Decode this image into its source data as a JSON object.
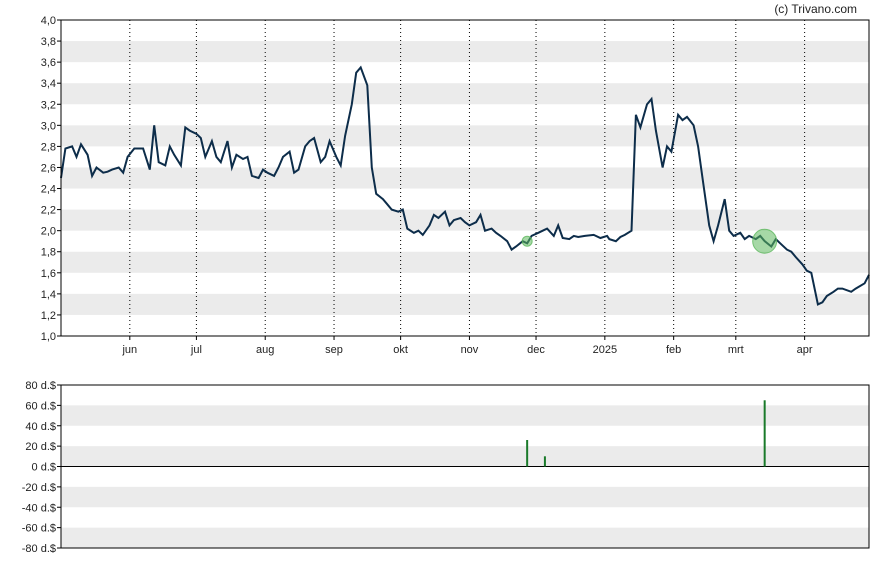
{
  "credit": "(c) Trivano.com",
  "colors": {
    "price_line": "#0d2d4a",
    "band": "#ebebeb",
    "volume_bar": "#1a7a2a",
    "marker_fill": "#5cb85c",
    "axis": "#000000"
  },
  "chart_data": [
    {
      "type": "line",
      "x": [
        "2024-05-01",
        "2024-05-03",
        "2024-05-06",
        "2024-05-08",
        "2024-05-10",
        "2024-05-13",
        "2024-05-15",
        "2024-05-17",
        "2024-05-20",
        "2024-05-22",
        "2024-05-24",
        "2024-05-27",
        "2024-05-29",
        "2024-05-31",
        "2024-06-03",
        "2024-06-05",
        "2024-06-07",
        "2024-06-10",
        "2024-06-12",
        "2024-06-14",
        "2024-06-17",
        "2024-06-19",
        "2024-06-21",
        "2024-06-24",
        "2024-06-26",
        "2024-06-28",
        "2024-07-01",
        "2024-07-03",
        "2024-07-05",
        "2024-07-08",
        "2024-07-10",
        "2024-07-12",
        "2024-07-15",
        "2024-07-17",
        "2024-07-19",
        "2024-07-22",
        "2024-07-24",
        "2024-07-26",
        "2024-07-29",
        "2024-07-31",
        "2024-08-02",
        "2024-08-05",
        "2024-08-07",
        "2024-08-09",
        "2024-08-12",
        "2024-08-14",
        "2024-08-16",
        "2024-08-19",
        "2024-08-21",
        "2024-08-23",
        "2024-08-26",
        "2024-08-28",
        "2024-08-30",
        "2024-09-02",
        "2024-09-04",
        "2024-09-06",
        "2024-09-09",
        "2024-09-11",
        "2024-09-13",
        "2024-09-16",
        "2024-09-18",
        "2024-09-20",
        "2024-09-23",
        "2024-09-25",
        "2024-09-27",
        "2024-09-30",
        "2024-10-02",
        "2024-10-04",
        "2024-10-07",
        "2024-10-09",
        "2024-10-11",
        "2024-10-14",
        "2024-10-16",
        "2024-10-18",
        "2024-10-21",
        "2024-10-23",
        "2024-10-25",
        "2024-10-28",
        "2024-10-30",
        "2024-11-01",
        "2024-11-04",
        "2024-11-06",
        "2024-11-08",
        "2024-11-11",
        "2024-11-13",
        "2024-11-15",
        "2024-11-18",
        "2024-11-20",
        "2024-11-22",
        "2024-11-25",
        "2024-11-27",
        "2024-11-29",
        "2024-12-02",
        "2024-12-04",
        "2024-12-06",
        "2024-12-09",
        "2024-12-11",
        "2024-12-13",
        "2024-12-16",
        "2024-12-18",
        "2024-12-20",
        "2024-12-23",
        "2024-12-27",
        "2024-12-30",
        "2025-01-02",
        "2025-01-03",
        "2025-01-06",
        "2025-01-08",
        "2025-01-10",
        "2025-01-13",
        "2025-01-15",
        "2025-01-17",
        "2025-01-20",
        "2025-01-22",
        "2025-01-24",
        "2025-01-27",
        "2025-01-29",
        "2025-01-31",
        "2025-02-03",
        "2025-02-05",
        "2025-02-07",
        "2025-02-10",
        "2025-02-12",
        "2025-02-14",
        "2025-02-17",
        "2025-02-19",
        "2025-02-21",
        "2025-02-24",
        "2025-02-26",
        "2025-02-28",
        "2025-03-03",
        "2025-03-05",
        "2025-03-07",
        "2025-03-10",
        "2025-03-12",
        "2025-03-14",
        "2025-03-17",
        "2025-03-19",
        "2025-03-21",
        "2025-03-24",
        "2025-03-26",
        "2025-03-28",
        "2025-03-31",
        "2025-04-02",
        "2025-04-04",
        "2025-04-07",
        "2025-04-09",
        "2025-04-11",
        "2025-04-14",
        "2025-04-16",
        "2025-04-18",
        "2025-04-22",
        "2025-04-24",
        "2025-04-28",
        "2025-04-30"
      ],
      "y": [
        2.5,
        2.78,
        2.8,
        2.7,
        2.82,
        2.72,
        2.52,
        2.6,
        2.55,
        2.56,
        2.58,
        2.6,
        2.55,
        2.7,
        2.78,
        2.78,
        2.78,
        2.58,
        3.0,
        2.65,
        2.62,
        2.8,
        2.72,
        2.62,
        2.98,
        2.95,
        2.92,
        2.88,
        2.7,
        2.85,
        2.7,
        2.65,
        2.85,
        2.6,
        2.72,
        2.68,
        2.7,
        2.52,
        2.5,
        2.58,
        2.55,
        2.52,
        2.6,
        2.7,
        2.75,
        2.55,
        2.58,
        2.8,
        2.85,
        2.88,
        2.65,
        2.7,
        2.85,
        2.7,
        2.62,
        2.9,
        3.2,
        3.5,
        3.55,
        3.38,
        2.6,
        2.35,
        2.3,
        2.25,
        2.2,
        2.18,
        2.2,
        2.02,
        1.98,
        2.0,
        1.96,
        2.05,
        2.15,
        2.12,
        2.18,
        2.05,
        2.1,
        2.12,
        2.08,
        2.05,
        2.08,
        2.15,
        2.0,
        2.02,
        1.98,
        1.95,
        1.9,
        1.82,
        1.85,
        1.9,
        1.88,
        1.95,
        1.98,
        2.0,
        2.02,
        1.95,
        2.05,
        1.93,
        1.92,
        1.95,
        1.94,
        1.95,
        1.96,
        1.93,
        1.95,
        1.92,
        1.9,
        1.94,
        1.96,
        2.0,
        3.1,
        2.98,
        3.2,
        3.25,
        2.95,
        2.6,
        2.8,
        2.75,
        3.1,
        3.05,
        3.08,
        3.0,
        2.8,
        2.5,
        2.05,
        1.9,
        2.05,
        2.3,
        2.0,
        1.95,
        1.98,
        1.92,
        1.95,
        1.92,
        1.95,
        1.9,
        1.85,
        1.92,
        1.88,
        1.82,
        1.8,
        1.75,
        1.68,
        1.62,
        1.6,
        1.3,
        1.32,
        1.38,
        1.42,
        1.45,
        1.45,
        1.42,
        1.45,
        1.5,
        1.58
      ],
      "xlabel": "",
      "ylabel": "",
      "ylim": [
        1.0,
        4.0
      ],
      "y_ticks": [
        "1,0",
        "1,2",
        "1,4",
        "1,6",
        "1,8",
        "2,0",
        "2,2",
        "2,4",
        "2,6",
        "2,8",
        "3,0",
        "3,2",
        "3,4",
        "3,6",
        "3,8",
        "4,0"
      ],
      "x_ticks": [
        {
          "label": "jun",
          "date": "2024-06-01"
        },
        {
          "label": "jul",
          "date": "2024-07-01"
        },
        {
          "label": "aug",
          "date": "2024-08-01"
        },
        {
          "label": "sep",
          "date": "2024-09-01"
        },
        {
          "label": "okt",
          "date": "2024-10-01"
        },
        {
          "label": "nov",
          "date": "2024-11-01"
        },
        {
          "label": "dec",
          "date": "2024-12-01"
        },
        {
          "label": "2025",
          "date": "2025-01-01"
        },
        {
          "label": "feb",
          "date": "2025-02-01"
        },
        {
          "label": "mrt",
          "date": "2025-03-01"
        },
        {
          "label": "apr",
          "date": "2025-04-01"
        }
      ],
      "x_range": [
        "2024-05-01",
        "2025-04-30"
      ],
      "markers": [
        {
          "date": "2024-11-27",
          "value": 1.9,
          "size": "small"
        },
        {
          "date": "2025-03-14",
          "value": 1.9,
          "size": "large"
        }
      ],
      "grid": "alternating horizontal bands, dotted vertical month lines"
    },
    {
      "type": "bar",
      "x": [
        "2024-11-27",
        "2024-12-05",
        "2025-03-14"
      ],
      "values": [
        26,
        10,
        65
      ],
      "ylim": [
        -80,
        80
      ],
      "y_ticks": [
        "-80 d.$",
        "-60 d.$",
        "-40 d.$",
        "-20 d.$",
        "0 d.$",
        "20 d.$",
        "40 d.$",
        "60 d.$",
        "80 d.$"
      ],
      "grid": "alternating horizontal bands"
    }
  ]
}
